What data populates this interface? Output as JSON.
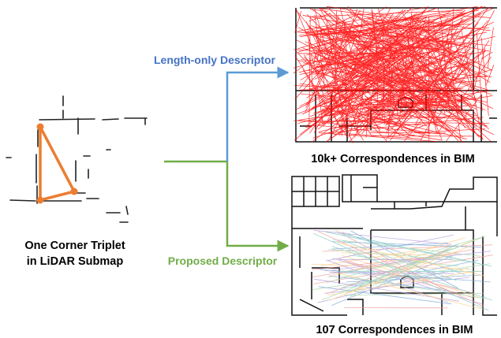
{
  "left_panel": {
    "caption_line1": "One Corner Triplet",
    "caption_line2": "in LiDAR Submap"
  },
  "top_branch": {
    "label": "Length-only Descriptor",
    "caption": "10k+ Correspondences in BIM"
  },
  "bottom_branch": {
    "label": "Proposed Descriptor",
    "caption": "107 Correspondences in BIM"
  },
  "colors": {
    "blue_arrow": "#5b9bd5",
    "green_arrow": "#70ad47",
    "triplet": "#ed7d31",
    "dense_lines": "#ff0000",
    "blue_label": "#4472c4",
    "green_label": "#70ad47"
  }
}
